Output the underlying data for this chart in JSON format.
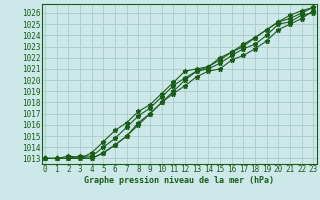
{
  "x": [
    0,
    1,
    2,
    3,
    4,
    5,
    6,
    7,
    8,
    9,
    10,
    11,
    12,
    13,
    14,
    15,
    16,
    17,
    18,
    19,
    20,
    21,
    22,
    23
  ],
  "series": [
    [
      1013.0,
      1013.0,
      1013.2,
      1013.1,
      1013.0,
      1013.5,
      1014.2,
      1015.0,
      1016.2,
      1017.0,
      1018.0,
      1018.8,
      1019.5,
      1020.3,
      1020.8,
      1021.0,
      1021.8,
      1022.2,
      1022.8,
      1023.5,
      1024.5,
      1025.0,
      1025.5,
      1026.2
    ],
    [
      1013.0,
      1013.0,
      1013.0,
      1013.2,
      1013.2,
      1014.0,
      1014.8,
      1015.8,
      1016.8,
      1017.5,
      1018.5,
      1019.5,
      1020.2,
      1020.8,
      1021.0,
      1021.5,
      1022.2,
      1022.8,
      1023.2,
      1024.0,
      1025.0,
      1025.2,
      1025.8,
      1026.0
    ],
    [
      1013.0,
      1013.0,
      1013.0,
      1013.0,
      1013.5,
      1014.5,
      1015.5,
      1016.2,
      1017.2,
      1017.8,
      1018.8,
      1019.8,
      1020.8,
      1021.0,
      1021.2,
      1022.0,
      1022.5,
      1023.2,
      1023.8,
      1024.5,
      1025.2,
      1025.5,
      1026.0,
      1026.5
    ],
    [
      1013.0,
      1013.0,
      1013.0,
      1013.0,
      1013.0,
      1013.5,
      1014.2,
      1015.0,
      1016.0,
      1017.0,
      1018.0,
      1019.0,
      1020.0,
      1020.8,
      1021.2,
      1021.8,
      1022.5,
      1023.0,
      1023.8,
      1024.5,
      1025.2,
      1025.8,
      1026.2,
      1026.5
    ]
  ],
  "bg_color": "#cce8e8",
  "line_color": "#1a5c1a",
  "grid_color": "#b0cece",
  "text_color": "#1a5c1a",
  "xlabel": "Graphe pression niveau de la mer (hPa)",
  "ylim": [
    1012.5,
    1026.8
  ],
  "xlim": [
    -0.3,
    23.3
  ],
  "yticks": [
    1013,
    1014,
    1015,
    1016,
    1017,
    1018,
    1019,
    1020,
    1021,
    1022,
    1023,
    1024,
    1025,
    1026
  ],
  "xticks": [
    0,
    1,
    2,
    3,
    4,
    5,
    6,
    7,
    8,
    9,
    10,
    11,
    12,
    13,
    14,
    15,
    16,
    17,
    18,
    19,
    20,
    21,
    22,
    23
  ]
}
